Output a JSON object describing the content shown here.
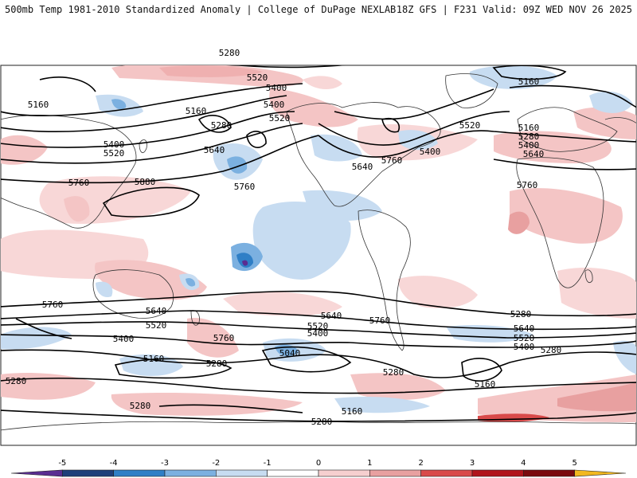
{
  "header": {
    "title": "500mb Temp 1981-2010 Standardized Anomaly | College of DuPage NEXLAB",
    "run_info": "18Z GFS | F231 Valid: 09Z WED NOV 26 2025"
  },
  "contour_labels": [
    "5280",
    "5520",
    "5400",
    "5160",
    "5160",
    "5160",
    "5400",
    "5520",
    "5520",
    "5160",
    "5400",
    "5520",
    "5280",
    "5640",
    "5880",
    "5760",
    "5640",
    "5760",
    "5280",
    "5400",
    "5640",
    "5760",
    "5760",
    "5640",
    "5520",
    "5400",
    "5760",
    "5640",
    "5520",
    "5400",
    "5040",
    "5280",
    "5760",
    "5640",
    "5520",
    "5400",
    "5280",
    "5280",
    "5760",
    "5640",
    "5520",
    "5400",
    "5280",
    "5160",
    "5160",
    "5280",
    "5160",
    "5280",
    "5400",
    "5280"
  ],
  "legend": {
    "ticks": [
      "-5",
      "-4",
      "-3",
      "-2",
      "-1",
      "0",
      "1",
      "2",
      "3",
      "4",
      "5"
    ],
    "colors": [
      "#5a2d91",
      "#1f3f7a",
      "#2f7fc6",
      "#7bb0e0",
      "#c7dcf1",
      "#ffffff",
      "#f6cfcf",
      "#e8a0a0",
      "#d94a4a",
      "#b0151c",
      "#7a0a0e",
      "#f2b820"
    ]
  }
}
